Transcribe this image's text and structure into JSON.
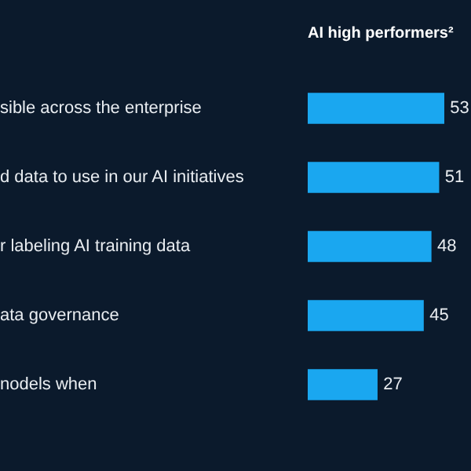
{
  "chart_data": {
    "type": "bar",
    "orientation": "horizontal",
    "title": "AI high performers²",
    "categories": [
      "sible across the enterprise",
      "d data to use in our AI initiatives",
      "r labeling AI training data",
      "ata governance",
      "nodels when"
    ],
    "values": [
      53,
      51,
      48,
      45,
      27
    ],
    "color": "#1aa7f0",
    "data_labels": true
  }
}
